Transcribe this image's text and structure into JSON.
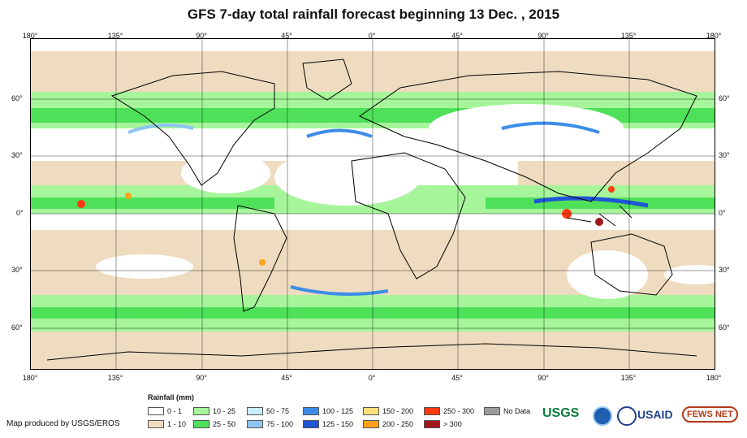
{
  "title": "GFS 7-day total rainfall forecast beginning 13 Dec. , 2015",
  "longitude_labels": [
    "180°",
    "135°",
    "90°",
    "45°",
    "0°",
    "45°",
    "90°",
    "135°",
    "180°"
  ],
  "latitude_labels": [
    "60°",
    "30°",
    "0°",
    "30°",
    "60°"
  ],
  "legend": {
    "title": "Rainfall (mm)",
    "items": [
      {
        "label": "0 - 1",
        "color": "#ffffff"
      },
      {
        "label": "1 - 10",
        "color": "#efdcc0"
      },
      {
        "label": "10 - 25",
        "color": "#a6f59a"
      },
      {
        "label": "25 - 50",
        "color": "#4fe05a"
      },
      {
        "label": "50 - 75",
        "color": "#c9eef8"
      },
      {
        "label": "75 - 100",
        "color": "#8ec4f1"
      },
      {
        "label": "100 - 125",
        "color": "#3d8de8"
      },
      {
        "label": "125 - 150",
        "color": "#1f55d6"
      },
      {
        "label": "150 - 200",
        "color": "#ffe07a"
      },
      {
        "label": "200 - 250",
        "color": "#ffa21a"
      },
      {
        "label": "250 - 300",
        "color": "#ff3a12"
      },
      {
        "label": "> 300",
        "color": "#a0161d"
      },
      {
        "label": "No Data",
        "color": "#9a9a9a"
      }
    ]
  },
  "credit": "Map produced by USGS/EROS",
  "logos": {
    "usgs": "USGS",
    "usaid": "USAID",
    "fews": "FEWS NET"
  }
}
